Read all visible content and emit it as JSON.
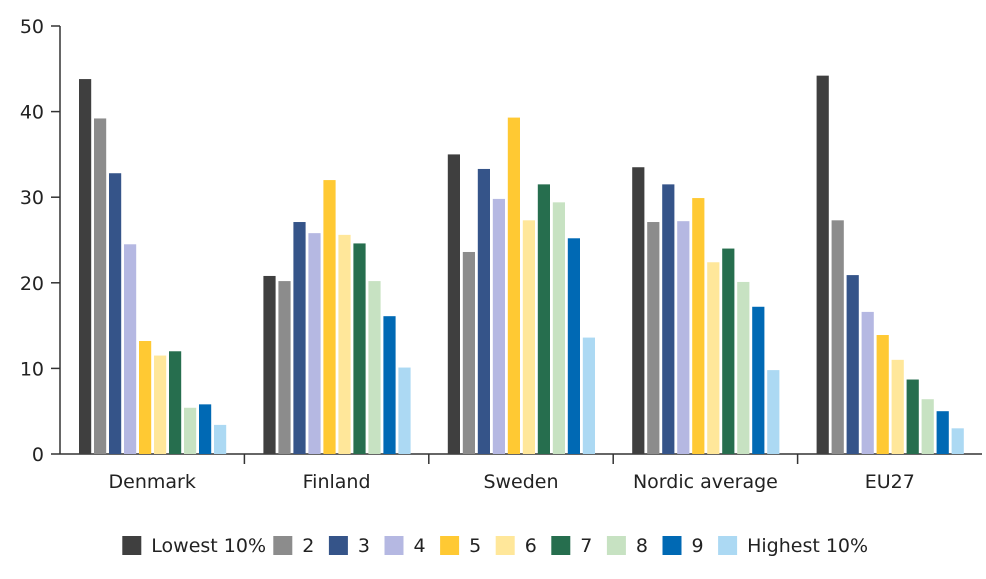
{
  "chart_data": {
    "type": "bar",
    "title": "",
    "xlabel": "",
    "ylabel": "",
    "ylim": [
      0,
      50
    ],
    "yticks": [
      0,
      10,
      20,
      30,
      40,
      50
    ],
    "grid": false,
    "legend_position": "bottom",
    "categories": [
      "Denmark",
      "Finland",
      "Sweden",
      "Nordic average",
      "EU27"
    ],
    "series": [
      {
        "name": "Lowest 10%",
        "color": "#3f3f3f",
        "values": [
          43.8,
          20.8,
          35.0,
          33.5,
          44.2
        ]
      },
      {
        "name": "2",
        "color": "#8c8c8c",
        "values": [
          39.2,
          20.2,
          23.6,
          27.1,
          27.3
        ]
      },
      {
        "name": "3",
        "color": "#355489",
        "values": [
          32.8,
          27.1,
          33.3,
          31.5,
          20.9
        ]
      },
      {
        "name": "4",
        "color": "#b5b8e2",
        "values": [
          24.5,
          25.8,
          29.8,
          27.2,
          16.6
        ]
      },
      {
        "name": "5",
        "color": "#ffc933",
        "values": [
          13.2,
          32.0,
          39.3,
          29.9,
          13.9
        ]
      },
      {
        "name": "6",
        "color": "#ffe79a",
        "values": [
          11.5,
          25.6,
          27.3,
          22.4,
          11.0
        ]
      },
      {
        "name": "7",
        "color": "#266e4e",
        "values": [
          12.0,
          24.6,
          31.5,
          24.0,
          8.7
        ]
      },
      {
        "name": "8",
        "color": "#c7e2c2",
        "values": [
          5.4,
          20.2,
          29.4,
          20.1,
          6.4
        ]
      },
      {
        "name": "9",
        "color": "#0069b4",
        "values": [
          5.8,
          16.1,
          25.2,
          17.2,
          5.0
        ]
      },
      {
        "name": "Highest 10%",
        "color": "#acd9f3",
        "values": [
          3.4,
          10.1,
          13.6,
          9.8,
          3.0
        ]
      }
    ]
  }
}
